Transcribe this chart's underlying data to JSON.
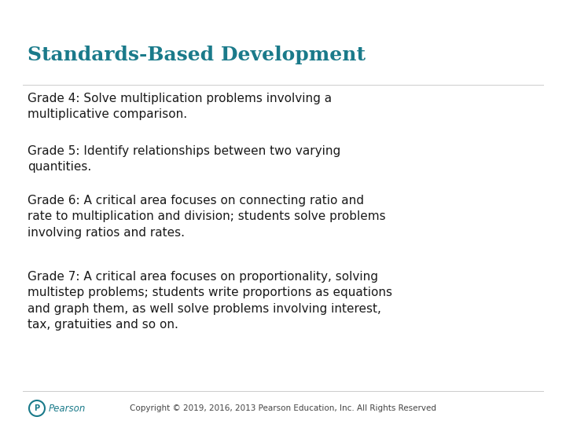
{
  "title": "Standards-Based Development",
  "title_color": "#1a7a8a",
  "title_fontsize": 18,
  "background_color": "#ffffff",
  "text_color": "#1a1a1a",
  "body_fontsize": 11,
  "paragraphs": [
    "Grade 4: Solve multiplication problems involving a\nmultiplicative comparison.",
    "Grade 5: Identify relationships between two varying\nquantities.",
    "Grade 6: A critical area focuses on connecting ratio and\nrate to multiplication and division; students solve problems\ninvolving ratios and rates.",
    "Grade 7: A critical area focuses on proportionality, solving\nmultistep problems; students write proportions as equations\nand graph them, as well solve problems involving interest,\ntax, gratuities and so on."
  ],
  "footer_text": "Copyright © 2019, 2016, 2013 Pearson Education, Inc. All Rights Reserved",
  "footer_fontsize": 7.5,
  "pearson_text": "Pearson",
  "pearson_color": "#1a7a8a",
  "pearson_fontsize": 8.5
}
